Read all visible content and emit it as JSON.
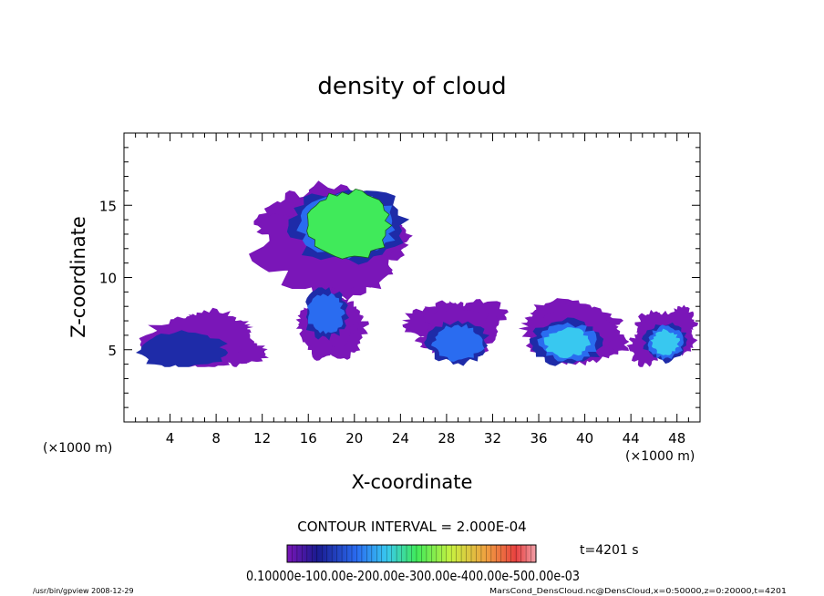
{
  "chart_data": {
    "type": "heatmap",
    "title": "density of cloud",
    "xlabel": "X-coordinate",
    "ylabel": "Z-coordinate",
    "x_unit": "(×1000 m)",
    "z_unit": "(×1000 m)",
    "xlim": [
      0,
      50
    ],
    "ylim": [
      0,
      20
    ],
    "x_ticks": [
      4,
      8,
      12,
      16,
      20,
      24,
      28,
      32,
      36,
      40,
      44,
      48
    ],
    "y_ticks": [
      5,
      10,
      15
    ],
    "contour_interval": "CONTOUR INTERVAL = 2.000E-04",
    "time_label": "t=4201 s",
    "colorbar_labels": "0.10000e-100.00e-200.00e-300.00e-400.00e-500.00e-03",
    "footer_left": "/usr/bin/gpview   2008-12-29",
    "footer_right": "MarsCond_DensCloud.nc@DensCloud,x=0:50000,z=0:20000,t=4201",
    "colors": {
      "low": "#7a16b8",
      "mid_low": "#1e2ba8",
      "mid": "#2a6cf0",
      "mid_high": "#38c8f0",
      "high": "#40ea5a"
    },
    "cloud_regions": [
      {
        "x_center": 19.5,
        "z_center": 13.6,
        "x_extent": [
          9.5,
          26.0
        ],
        "z_extent": [
          8.0,
          16.3
        ],
        "peak_level": "high"
      },
      {
        "x_center": 17.5,
        "z_center": 7.5,
        "x_extent": [
          14.5,
          20.5
        ],
        "z_extent": [
          4.0,
          9.5
        ],
        "peak_level": "mid"
      },
      {
        "x_center": 5.0,
        "z_center": 5.0,
        "x_extent": [
          0.0,
          12.5
        ],
        "z_extent": [
          3.8,
          7.8
        ],
        "peak_level": "mid_low"
      },
      {
        "x_center": 29.0,
        "z_center": 5.5,
        "x_extent": [
          25.0,
          33.5
        ],
        "z_extent": [
          3.8,
          8.6
        ],
        "peak_level": "mid"
      },
      {
        "x_center": 38.5,
        "z_center": 5.5,
        "x_extent": [
          34.0,
          44.0
        ],
        "z_extent": [
          3.8,
          8.8
        ],
        "peak_level": "mid_high"
      },
      {
        "x_center": 47.0,
        "z_center": 5.5,
        "x_extent": [
          44.0,
          50.0
        ],
        "z_extent": [
          3.8,
          8.2
        ],
        "peak_level": "mid_high"
      }
    ]
  }
}
